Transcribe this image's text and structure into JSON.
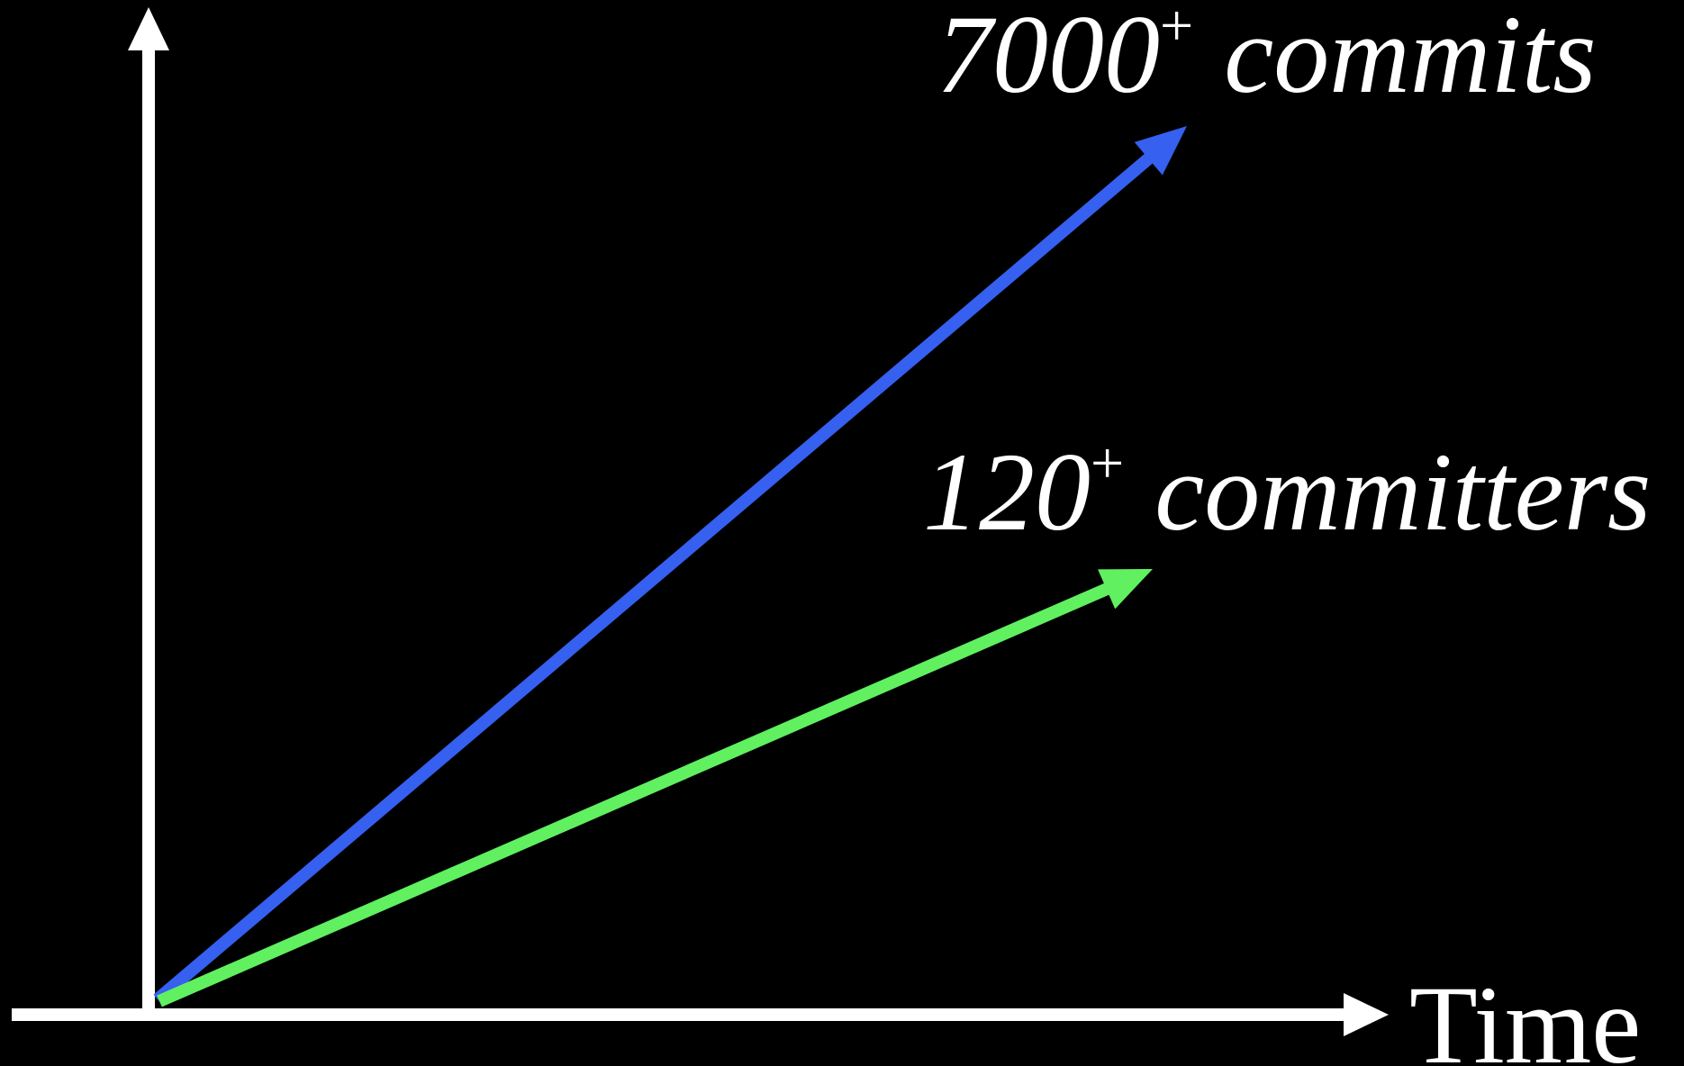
{
  "chart_data": {
    "type": "line",
    "xlabel": "Time",
    "ylabel": "",
    "grid": false,
    "colors": {
      "background": "#000000",
      "axes": "#ffffff",
      "text": "#ffffff"
    },
    "series": [
      {
        "label_value": "7000",
        "label_suffix": "+",
        "label_unit": "commits",
        "color": "#3560f0"
      },
      {
        "label_value": "120",
        "label_suffix": "+",
        "label_unit": "committers",
        "color": "#60f060"
      }
    ]
  }
}
